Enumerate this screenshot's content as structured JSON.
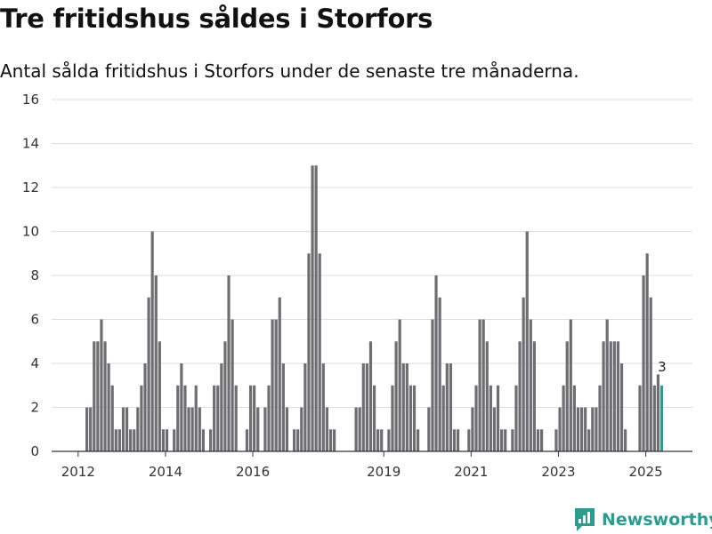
{
  "title": "Tre fritidshus såldes i Storfors",
  "subtitle": "Antal sålda fritidshus i Storfors under de senaste tre månaderna.",
  "brand": "Newsworthy",
  "colors": {
    "bar": "#6e6d72",
    "highlight": "#2a9d8f",
    "grid": "#dddddd",
    "axis": "#333333"
  },
  "chart_data": {
    "type": "bar",
    "ylim": [
      0,
      16
    ],
    "yticks": [
      0,
      2,
      4,
      6,
      8,
      10,
      12,
      14,
      16
    ],
    "x_start": "2012-03",
    "xticks": [
      "2012",
      "2014",
      "2016",
      "2019",
      "2021",
      "2023",
      "2025"
    ],
    "values": [
      2,
      2,
      5,
      5,
      6,
      5,
      4,
      3,
      1,
      1,
      2,
      2,
      1,
      1,
      2,
      3,
      4,
      7,
      10,
      8,
      5,
      1,
      1,
      0,
      1,
      3,
      4,
      3,
      2,
      2,
      3,
      2,
      1,
      0,
      1,
      3,
      3,
      4,
      5,
      8,
      6,
      3,
      0,
      0,
      1,
      3,
      3,
      2,
      0,
      2,
      3,
      6,
      6,
      7,
      4,
      2,
      0,
      1,
      1,
      2,
      4,
      9,
      13,
      13,
      9,
      4,
      2,
      1,
      1,
      0,
      0,
      0,
      0,
      0,
      2,
      2,
      4,
      4,
      5,
      3,
      1,
      1,
      0,
      1,
      3,
      5,
      6,
      4,
      4,
      3,
      3,
      1,
      0,
      0,
      2,
      6,
      8,
      7,
      3,
      4,
      4,
      1,
      1,
      0,
      0,
      1,
      2,
      3,
      6,
      6,
      5,
      3,
      2,
      3,
      1,
      1,
      0,
      1,
      3,
      5,
      7,
      10,
      6,
      5,
      1,
      1,
      0,
      0,
      0,
      1,
      2,
      3,
      5,
      6,
      3,
      2,
      2,
      2,
      1,
      2,
      2,
      3,
      5,
      6,
      5,
      5,
      5,
      4,
      1,
      0,
      0,
      0,
      3,
      8,
      9,
      7,
      3,
      3.5,
      3
    ],
    "highlight_last": true,
    "annotations": [
      {
        "label": "3"
      }
    ]
  }
}
